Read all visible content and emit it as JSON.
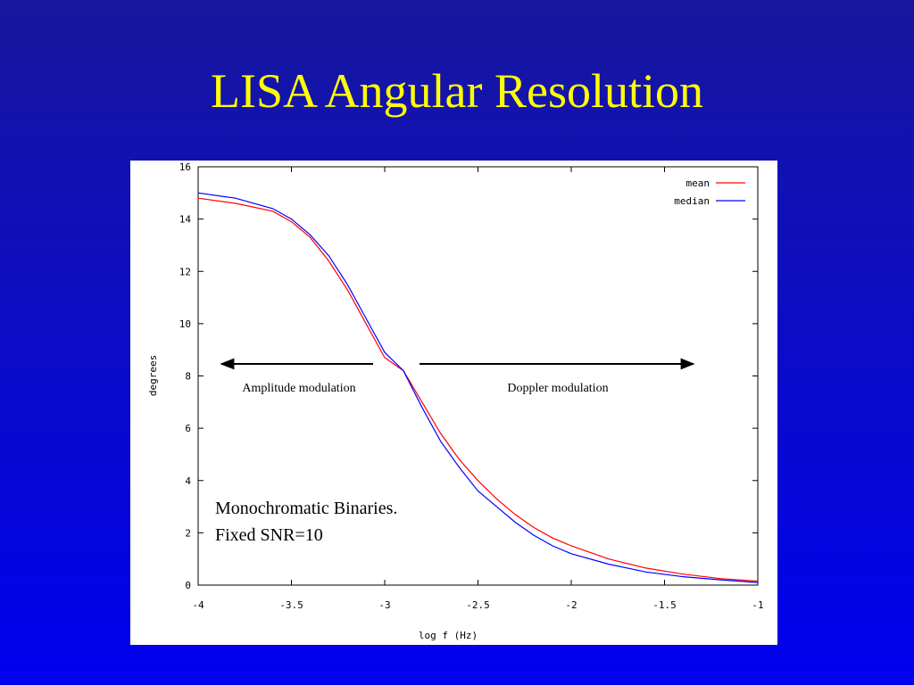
{
  "chart_data": {
    "type": "line",
    "title": "LISA Angular Resolution",
    "xlabel": "log f (Hz)",
    "ylabel": "degrees",
    "x": [
      -4,
      -3.8,
      -3.6,
      -3.5,
      -3.4,
      -3.3,
      -3.2,
      -3.1,
      -3.0,
      -2.9,
      -2.8,
      -2.7,
      -2.6,
      -2.5,
      -2.4,
      -2.3,
      -2.2,
      -2.1,
      -2.0,
      -1.8,
      -1.6,
      -1.4,
      -1.2,
      -1.0
    ],
    "series": [
      {
        "name": "mean",
        "color": "#ff0000",
        "values": [
          14.8,
          14.6,
          14.3,
          13.9,
          13.3,
          12.4,
          11.3,
          10.0,
          8.7,
          8.2,
          7.0,
          5.8,
          4.8,
          4.0,
          3.3,
          2.7,
          2.2,
          1.8,
          1.5,
          1.0,
          0.65,
          0.42,
          0.25,
          0.15
        ]
      },
      {
        "name": "median",
        "color": "#0000ff",
        "values": [
          15.0,
          14.8,
          14.4,
          14.0,
          13.4,
          12.6,
          11.5,
          10.2,
          8.9,
          8.2,
          6.8,
          5.5,
          4.5,
          3.6,
          3.0,
          2.4,
          1.9,
          1.5,
          1.2,
          0.8,
          0.5,
          0.32,
          0.2,
          0.1
        ]
      }
    ],
    "xlim": [
      -4,
      -1
    ],
    "xticks": [
      -4,
      -3.5,
      -3,
      -2.5,
      -2,
      -1.5,
      -1
    ],
    "ylim": [
      0,
      16
    ],
    "yticks": [
      0,
      2,
      4,
      6,
      8,
      10,
      12,
      14,
      16
    ],
    "legend": "top-right",
    "annotations": [
      "Amplitude modulation",
      "Doppler modulation",
      "Monochromatic Binaries.",
      "Fixed SNR=10"
    ]
  }
}
